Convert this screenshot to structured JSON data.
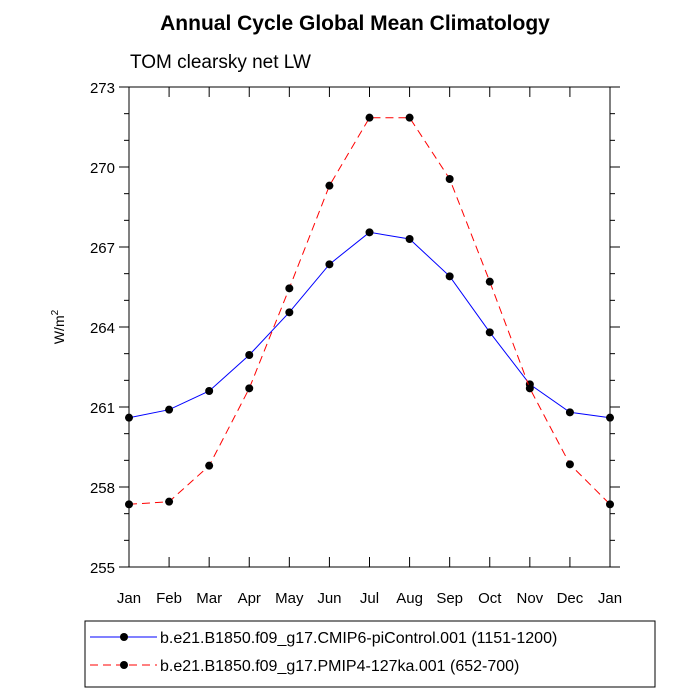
{
  "chart_data": {
    "type": "line",
    "title": "Annual Cycle Global Mean Climatology",
    "subtitle": "TOM clearsky net LW",
    "ylabel": "W/m",
    "ylabel_superscript": "2",
    "xlabel": "",
    "categories": [
      "Jan",
      "Feb",
      "Mar",
      "Apr",
      "May",
      "Jun",
      "Jul",
      "Aug",
      "Sep",
      "Oct",
      "Nov",
      "Dec",
      "Jan"
    ],
    "ylim": [
      255,
      273
    ],
    "yticks": [
      255,
      258,
      261,
      264,
      267,
      270,
      273
    ],
    "grid": false,
    "legend_position": "bottom",
    "series": [
      {
        "name": "b.e21.B1850.f09_g17.CMIP6-piControl.001 (1151-1200)",
        "color": "#0000ff",
        "line_style": "solid",
        "marker": "filled-circle",
        "values": [
          260.6,
          260.9,
          261.6,
          262.95,
          264.55,
          266.35,
          267.55,
          267.3,
          265.9,
          263.8,
          261.85,
          260.8,
          260.6
        ]
      },
      {
        "name": "b.e21.B1850.f09_g17.PMIP4-127ka.001 (652-700)",
        "color": "#ff0000",
        "line_style": "dashed",
        "marker": "filled-circle",
        "values": [
          257.35,
          257.45,
          258.8,
          261.7,
          265.45,
          269.3,
          271.85,
          271.85,
          269.55,
          265.7,
          261.7,
          258.85,
          257.35
        ]
      }
    ]
  }
}
